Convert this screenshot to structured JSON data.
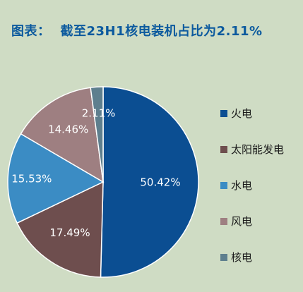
{
  "header": {
    "label": "图表：",
    "title": "截至23H1核电装机占比为2.11%"
  },
  "chart_data": {
    "type": "pie",
    "categories": [
      "火电",
      "太阳能发电",
      "水电",
      "风电",
      "核电"
    ],
    "values": [
      50.42,
      17.49,
      15.53,
      14.46,
      2.11
    ],
    "value_labels": [
      "50.42%",
      "17.49%",
      "15.53%",
      "14.46%",
      "2.11%"
    ],
    "colors": [
      "#0b4e92",
      "#6e4e4e",
      "#3b8cc4",
      "#9e7f81",
      "#5e7f8e"
    ],
    "title": "截至23H1核电装机占比为2.11%",
    "legend_position": "right"
  }
}
